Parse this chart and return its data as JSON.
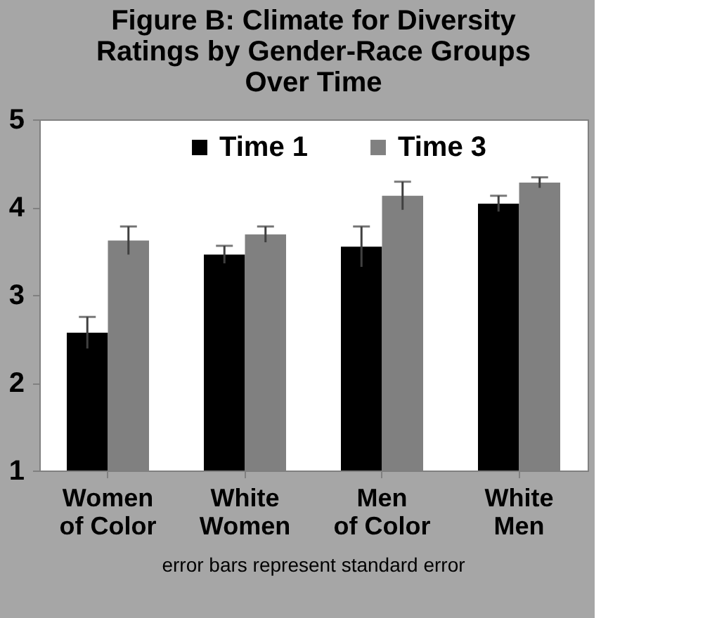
{
  "chart_data": {
    "type": "bar",
    "title": "Figure B:  Climate for Diversity\nRatings by Gender-Race Groups\nOver Time",
    "categories": [
      "Women\nof Color",
      "White\nWomen",
      "Men\nof Color",
      "White\nMen"
    ],
    "series": [
      {
        "name": "Time 1",
        "color": "#000000",
        "values": [
          2.57,
          3.46,
          3.55,
          4.04
        ],
        "errors": [
          0.18,
          0.1,
          0.23,
          0.09
        ]
      },
      {
        "name": "Time 3",
        "color": "#808080",
        "values": [
          3.62,
          3.69,
          4.13,
          4.28
        ],
        "errors": [
          0.16,
          0.09,
          0.16,
          0.06
        ]
      }
    ],
    "ylim": [
      1,
      5
    ],
    "yticks": [
      1,
      2,
      3,
      4,
      5
    ],
    "grid": false,
    "legend": "top",
    "annotations": [
      "error bars represent standard error"
    ]
  }
}
